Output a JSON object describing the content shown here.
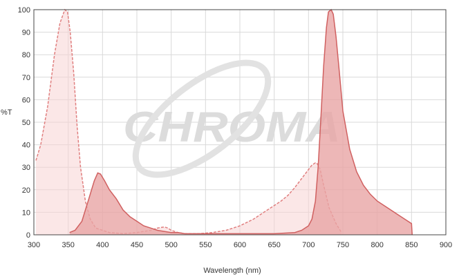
{
  "chart_data": {
    "type": "area",
    "xlabel": "Wavelength (nm)",
    "ylabel": "%T",
    "xlim": [
      300,
      900
    ],
    "ylim": [
      0,
      100
    ],
    "x_ticks": [
      300,
      350,
      400,
      450,
      500,
      550,
      600,
      650,
      700,
      750,
      800,
      850,
      900
    ],
    "y_ticks": [
      0,
      10,
      20,
      30,
      40,
      50,
      60,
      70,
      80,
      90,
      100
    ],
    "grid": true,
    "watermark": "CHROMA",
    "series": [
      {
        "style": "dashed-light",
        "color": "#e07f7f",
        "fill": "#f7d3d3",
        "x": [
          303,
          310,
          320,
          330,
          338,
          345,
          349,
          353,
          358,
          363,
          368,
          375,
          382,
          390,
          400,
          410,
          430,
          450,
          470,
          480,
          490,
          495,
          500,
          510,
          520,
          540,
          560,
          580,
          600,
          620,
          640,
          650,
          660,
          670,
          680,
          690,
          700,
          705,
          710,
          713,
          717,
          722,
          730,
          740,
          748
        ],
        "y": [
          33,
          40,
          57,
          80,
          94,
          100,
          99,
          90,
          72,
          48,
          30,
          15,
          7,
          3,
          2,
          1,
          0.5,
          1,
          2,
          3,
          3.5,
          3,
          2,
          1,
          0.5,
          0.5,
          1,
          2,
          4,
          7,
          11,
          13,
          15,
          17.5,
          21,
          25,
          29,
          31,
          32,
          31.5,
          29,
          22,
          12,
          5,
          1
        ]
      },
      {
        "style": "solid-medium",
        "color": "#d06060",
        "fill": "#e9a5a5",
        "x": [
          352,
          360,
          370,
          380,
          388,
          393,
          397,
          403,
          410,
          420,
          430,
          440,
          450,
          460,
          470,
          480,
          490,
          500,
          510,
          520,
          530,
          540,
          550,
          600,
          650,
          680,
          690,
          700,
          705,
          710,
          714,
          718,
          722,
          726,
          729,
          733,
          736,
          740,
          745,
          750,
          760,
          770,
          780,
          790,
          800,
          810,
          820,
          830,
          840,
          850,
          851
        ],
        "y": [
          1,
          2,
          6,
          16,
          24,
          27.5,
          27,
          24,
          20,
          16,
          11,
          8,
          6,
          4,
          3,
          2,
          1.5,
          1,
          1,
          0.5,
          0.5,
          0.5,
          0.5,
          0.5,
          0.5,
          1,
          2,
          4,
          7,
          15,
          30,
          52,
          75,
          92,
          99,
          100,
          98,
          88,
          72,
          55,
          38,
          28,
          22,
          18,
          15,
          13,
          11,
          9,
          7,
          5,
          0
        ]
      }
    ]
  }
}
